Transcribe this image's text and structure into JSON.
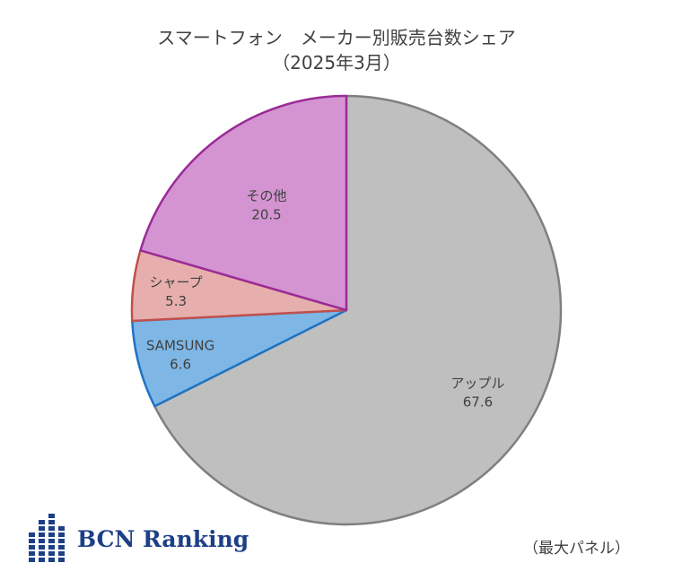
{
  "chart_data": {
    "type": "pie",
    "title": "スマートフォン　メーカー別販売台数シェア",
    "subtitle": "（2025年3月）",
    "slices": [
      {
        "label": "アップル",
        "value": 67.6,
        "fill": "#bfbfbf",
        "stroke": "#7f7f7f"
      },
      {
        "label": "SAMSUNG",
        "value": 6.6,
        "fill": "#7eb7e6",
        "stroke": "#1f72c4"
      },
      {
        "label": "シャープ",
        "value": 5.3,
        "fill": "#e6afad",
        "stroke": "#c0504d"
      },
      {
        "label": "その他",
        "value": 20.5,
        "fill": "#d394d1",
        "stroke": "#9b2b97"
      }
    ],
    "start": "12 o'clock",
    "direction": "clockwise"
  },
  "logo": {
    "text": "BCN Ranking",
    "color": "#1d3f86"
  },
  "footnote": "（最大パネル）"
}
